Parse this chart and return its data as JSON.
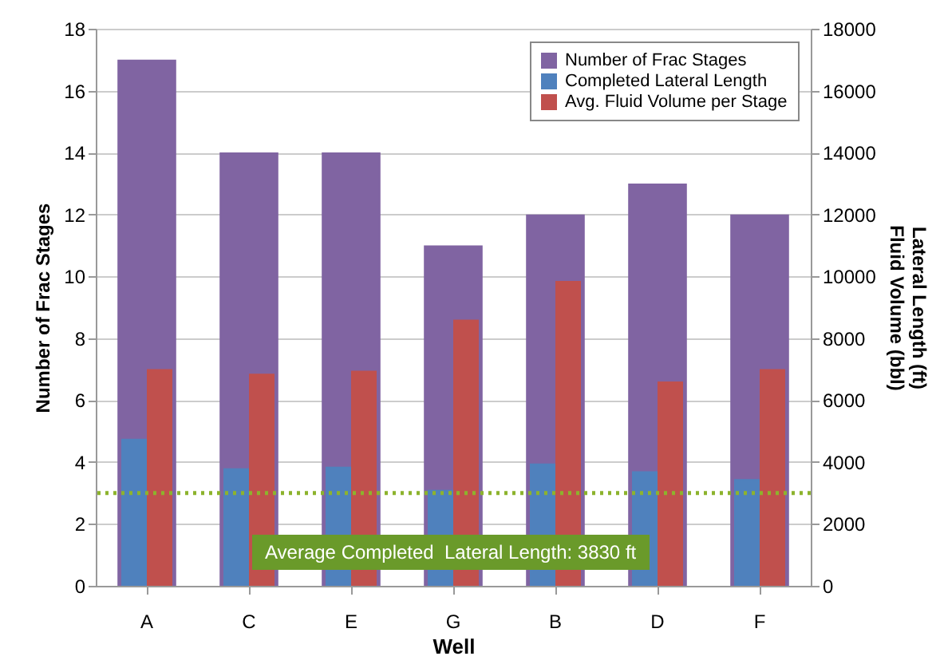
{
  "chart_data": {
    "type": "bar",
    "xlabel": "Well",
    "ylabel": "Number of Frac Stages",
    "y2label": "Lateral Length (ft)\nFluid Volume (bbl)",
    "categories": [
      "A",
      "C",
      "E",
      "G",
      "B",
      "D",
      "F"
    ],
    "series": [
      {
        "name": "Number of Frac Stages",
        "color": "#8064a2",
        "values": [
          17,
          14,
          14,
          11,
          12,
          13,
          12
        ]
      },
      {
        "name": "Completed Lateral Length",
        "color": "#4f81bd",
        "axis": "y2",
        "values": [
          4750,
          3800,
          3850,
          3100,
          3950,
          3700,
          3450
        ]
      },
      {
        "name": "Avg. Fluid Volume per Stage",
        "color": "#c0504d",
        "axis": "y2",
        "values": [
          7000,
          6850,
          6950,
          8600,
          9850,
          6600,
          7000
        ]
      }
    ],
    "ylim": [
      0,
      18
    ],
    "yticks": [
      0,
      2,
      4,
      6,
      8,
      10,
      12,
      14,
      16,
      18
    ],
    "y2lim": [
      0,
      18000
    ],
    "y2ticks": [
      0,
      2000,
      4000,
      6000,
      8000,
      10000,
      12000,
      14000,
      16000,
      18000
    ],
    "ref_lines": [
      {
        "axis": "y2",
        "value": 3000,
        "color": "#8db32d",
        "line_style": "dotted"
      }
    ],
    "annotations": [
      "Average Completed  Lateral Length: 3830 ft"
    ],
    "grid": "y",
    "legend": "top right"
  }
}
